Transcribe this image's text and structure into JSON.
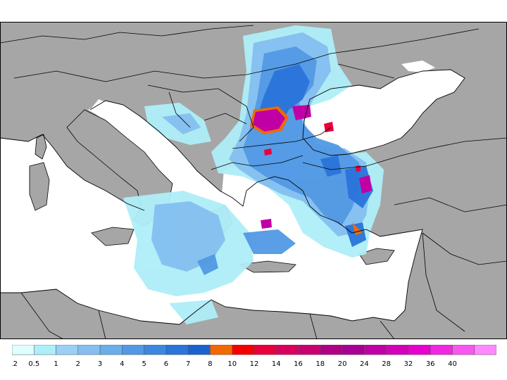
{
  "map": {
    "type": "precipitation-accumulation",
    "region": "Eastern Mediterranean / Balkans / Black Sea",
    "colors": {
      "land": "#a6a6a6",
      "sea": "#ffffff",
      "border": "#000000"
    }
  },
  "legend": {
    "bins": [
      {
        "label": "0.2",
        "color": "#e0ffff"
      },
      {
        "label": "0.5",
        "color": "#aeeef8"
      },
      {
        "label": "1",
        "color": "#9ad0f4"
      },
      {
        "label": "2",
        "color": "#84bff0"
      },
      {
        "label": "3",
        "color": "#6aaeea"
      },
      {
        "label": "4",
        "color": "#5299e4"
      },
      {
        "label": "5",
        "color": "#3c88e0"
      },
      {
        "label": "6",
        "color": "#2a74da"
      },
      {
        "label": "7",
        "color": "#1c62ce"
      },
      {
        "label": "8",
        "color": "#f06a00"
      },
      {
        "label": "10",
        "color": "#f40000"
      },
      {
        "label": "12",
        "color": "#e8003c"
      },
      {
        "label": "14",
        "color": "#d8005c"
      },
      {
        "label": "16",
        "color": "#c80070"
      },
      {
        "label": "18",
        "color": "#b00084"
      },
      {
        "label": "20",
        "color": "#a80094"
      },
      {
        "label": "24",
        "color": "#c000a4"
      },
      {
        "label": "28",
        "color": "#d400b8"
      },
      {
        "label": "32",
        "color": "#e800cc"
      },
      {
        "label": "36",
        "color": "#f028e0"
      },
      {
        "label": "40",
        "color": "#f858f0"
      },
      {
        "label": "",
        "color": "#ff88ff"
      }
    ]
  }
}
